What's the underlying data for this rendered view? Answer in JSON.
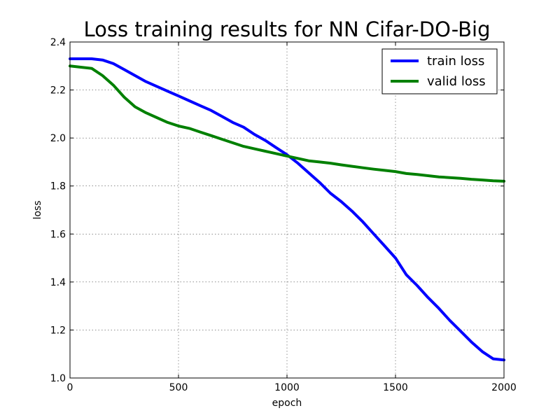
{
  "chart_data": {
    "type": "line",
    "title": "Loss training results for NN Cifar-DO-Big",
    "xlabel": "epoch",
    "ylabel": "loss",
    "xlim": [
      0,
      2000
    ],
    "ylim": [
      1.0,
      2.4
    ],
    "xticks": [
      0,
      500,
      1000,
      1500,
      2000
    ],
    "yticks": [
      1.0,
      1.2,
      1.4,
      1.6,
      1.8,
      2.0,
      2.2,
      2.4
    ],
    "x_tick_labels": [
      "0",
      "500",
      "1000",
      "1500",
      "2000"
    ],
    "y_tick_labels": [
      "1.0",
      "1.2",
      "1.4",
      "1.6",
      "1.8",
      "2.0",
      "2.2",
      "2.4"
    ],
    "grid": true,
    "legend_position": "upper right",
    "x": [
      0,
      50,
      100,
      150,
      200,
      250,
      300,
      350,
      400,
      450,
      500,
      550,
      600,
      650,
      700,
      750,
      800,
      850,
      900,
      950,
      1000,
      1050,
      1100,
      1150,
      1200,
      1250,
      1300,
      1350,
      1400,
      1450,
      1500,
      1550,
      1600,
      1650,
      1700,
      1750,
      1800,
      1850,
      1900,
      1950,
      2000
    ],
    "series": [
      {
        "name": "train loss",
        "color": "#0000ff",
        "values": [
          2.33,
          2.33,
          2.33,
          2.325,
          2.31,
          2.285,
          2.26,
          2.235,
          2.215,
          2.195,
          2.175,
          2.155,
          2.135,
          2.115,
          2.09,
          2.065,
          2.045,
          2.015,
          1.99,
          1.96,
          1.93,
          1.895,
          1.855,
          1.815,
          1.77,
          1.735,
          1.695,
          1.65,
          1.6,
          1.55,
          1.5,
          1.43,
          1.385,
          1.335,
          1.29,
          1.24,
          1.195,
          1.15,
          1.11,
          1.08,
          1.075
        ]
      },
      {
        "name": "valid loss",
        "color": "#008000",
        "values": [
          2.3,
          2.295,
          2.29,
          2.26,
          2.22,
          2.17,
          2.13,
          2.105,
          2.085,
          2.065,
          2.05,
          2.04,
          2.025,
          2.01,
          1.995,
          1.98,
          1.965,
          1.955,
          1.945,
          1.935,
          1.925,
          1.915,
          1.905,
          1.9,
          1.895,
          1.888,
          1.882,
          1.876,
          1.87,
          1.865,
          1.86,
          1.852,
          1.848,
          1.843,
          1.838,
          1.835,
          1.832,
          1.828,
          1.825,
          1.822,
          1.82
        ]
      }
    ]
  }
}
